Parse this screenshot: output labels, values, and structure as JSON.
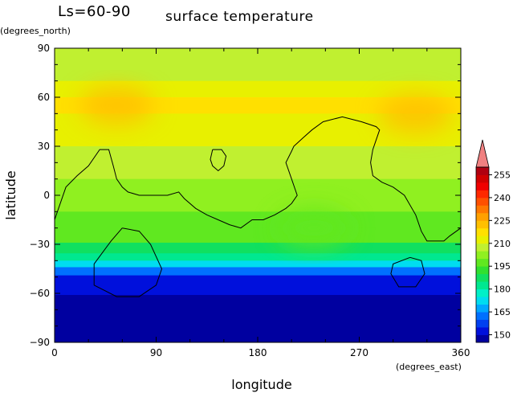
{
  "chart_data": {
    "type": "heatmap",
    "title": "surface temperature",
    "season_label": "Ls=60-90",
    "xlabel": "longitude",
    "ylabel": "latitude",
    "xunit": "(degrees_east)",
    "yunit": "(degrees_north)",
    "xlim": [
      0,
      360
    ],
    "ylim": [
      -90,
      90
    ],
    "x_ticks": [
      0,
      90,
      180,
      270,
      360
    ],
    "y_ticks": [
      90,
      60,
      30,
      0,
      -30,
      -60,
      -90
    ],
    "y_tick_labels": [
      "90",
      "60",
      "30",
      "0",
      "−30",
      "−60",
      "−90"
    ],
    "grid": false,
    "colorbar": {
      "position": "right",
      "levels": [
        145,
        150,
        155,
        160,
        165,
        170,
        175,
        180,
        185,
        190,
        195,
        200,
        205,
        210,
        215,
        220,
        225,
        230,
        235,
        240,
        245,
        250,
        255,
        260
      ],
      "tick_labels": [
        "150",
        "165",
        "180",
        "195",
        "210",
        "225",
        "240",
        "255"
      ],
      "colors": [
        "#0000a0",
        "#0010dc",
        "#0040f0",
        "#0070ff",
        "#00a8ff",
        "#00dcf0",
        "#00f0c8",
        "#00e890",
        "#10e060",
        "#30e030",
        "#60e820",
        "#90f020",
        "#c0f030",
        "#e8f000",
        "#ffe000",
        "#ffc000",
        "#ffa000",
        "#ff7800",
        "#ff5000",
        "#ff2800",
        "#f00000",
        "#d00000",
        "#b00010",
        "#f08080"
      ]
    },
    "latitude_band_temperatures": [
      {
        "lat": 85,
        "value": 205
      },
      {
        "lat": 75,
        "value": 207
      },
      {
        "lat": 65,
        "value": 213
      },
      {
        "lat": 55,
        "value": 216
      },
      {
        "lat": 45,
        "value": 214
      },
      {
        "lat": 35,
        "value": 211
      },
      {
        "lat": 25,
        "value": 208
      },
      {
        "lat": 15,
        "value": 205
      },
      {
        "lat": 5,
        "value": 203
      },
      {
        "lat": -5,
        "value": 201
      },
      {
        "lat": -15,
        "value": 199
      },
      {
        "lat": -25,
        "value": 195
      },
      {
        "lat": -33,
        "value": 188
      },
      {
        "lat": -38,
        "value": 180
      },
      {
        "lat": -42,
        "value": 170
      },
      {
        "lat": -46,
        "value": 160
      },
      {
        "lat": -52,
        "value": 150
      },
      {
        "lat": -70,
        "value": 147
      },
      {
        "lat": -85,
        "value": 147
      }
    ],
    "local_extrema": [
      {
        "lon": 55,
        "lat": 55,
        "value": 222
      },
      {
        "lon": 320,
        "lat": 50,
        "value": 224
      },
      {
        "lon": 230,
        "lat": -20,
        "value": 196
      }
    ],
    "contour_lines": [
      {
        "points": [
          [
            0,
            -15
          ],
          [
            10,
            5
          ],
          [
            20,
            12
          ],
          [
            30,
            18
          ],
          [
            40,
            28
          ],
          [
            48,
            28
          ],
          [
            52,
            18
          ],
          [
            55,
            10
          ],
          [
            60,
            5
          ],
          [
            65,
            2
          ],
          [
            75,
            0
          ],
          [
            90,
            0
          ],
          [
            100,
            0
          ],
          [
            110,
            2
          ],
          [
            115,
            -2
          ],
          [
            125,
            -8
          ],
          [
            135,
            -12
          ],
          [
            145,
            -15
          ],
          [
            155,
            -18
          ],
          [
            165,
            -20
          ],
          [
            175,
            -15
          ],
          [
            185,
            -15
          ],
          [
            195,
            -12
          ],
          [
            205,
            -8
          ],
          [
            210,
            -5
          ],
          [
            215,
            0
          ],
          [
            210,
            10
          ],
          [
            205,
            20
          ],
          [
            210,
            27
          ],
          [
            212,
            30
          ],
          [
            220,
            35
          ],
          [
            228,
            40
          ],
          [
            238,
            45
          ],
          [
            255,
            48
          ],
          [
            272,
            45
          ],
          [
            285,
            42
          ],
          [
            288,
            40
          ],
          [
            282,
            28
          ],
          [
            280,
            20
          ],
          [
            282,
            12
          ],
          [
            290,
            8
          ],
          [
            300,
            5
          ],
          [
            310,
            0
          ],
          [
            320,
            -12
          ],
          [
            325,
            -22
          ],
          [
            330,
            -28
          ],
          [
            345,
            -28
          ],
          [
            350,
            -25
          ],
          [
            360,
            -20
          ]
        ]
      },
      {
        "points": [
          [
            140,
            28
          ],
          [
            148,
            28
          ],
          [
            152,
            24
          ],
          [
            150,
            18
          ],
          [
            145,
            15
          ],
          [
            140,
            18
          ],
          [
            138,
            22
          ],
          [
            140,
            28
          ]
        ]
      },
      {
        "points": [
          [
            60,
            -20
          ],
          [
            50,
            -28
          ],
          [
            35,
            -42
          ],
          [
            35,
            -55
          ],
          [
            55,
            -62
          ],
          [
            75,
            -62
          ],
          [
            90,
            -55
          ],
          [
            95,
            -45
          ],
          [
            85,
            -30
          ],
          [
            75,
            -22
          ],
          [
            60,
            -20
          ]
        ]
      },
      {
        "points": [
          [
            315,
            -38
          ],
          [
            300,
            -42
          ],
          [
            298,
            -48
          ],
          [
            305,
            -56
          ],
          [
            320,
            -56
          ],
          [
            328,
            -48
          ],
          [
            325,
            -40
          ],
          [
            315,
            -38
          ]
        ]
      }
    ]
  }
}
